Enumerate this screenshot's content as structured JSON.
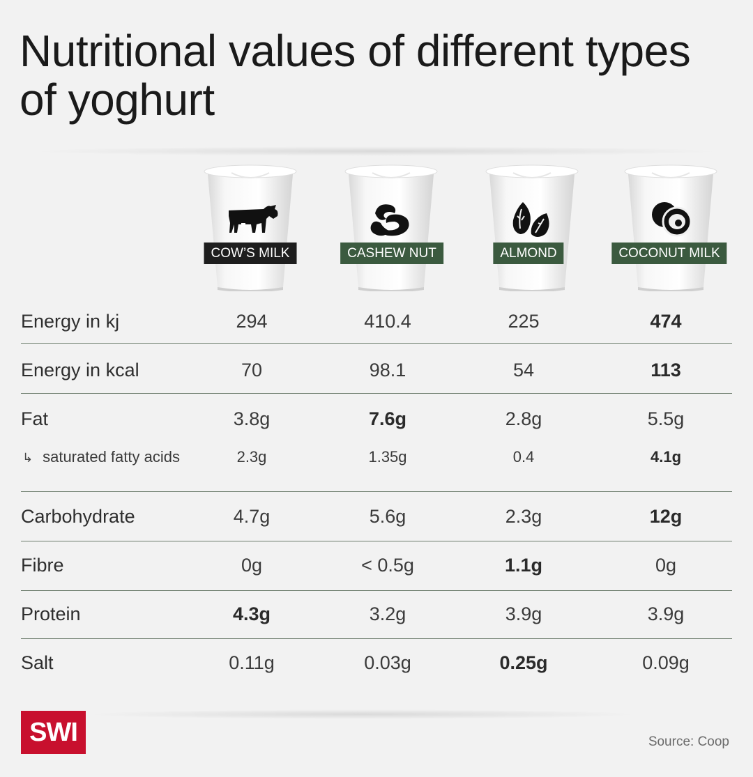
{
  "title": "Nutritional values of different types of yoghurt",
  "brand": "SWI",
  "source": "Source: Coop",
  "colors": {
    "dark_tag": "#1e1e1e",
    "green_tag": "#3b5a3f",
    "logo": "#c8102e"
  },
  "chart_data": {
    "type": "table",
    "columns": [
      {
        "name": "COW’S MILK",
        "icon": "cow-icon"
      },
      {
        "name": "CASHEW NUT",
        "icon": "cashew-icon"
      },
      {
        "name": "ALMOND",
        "icon": "almond-icon"
      },
      {
        "name": "COCONUT MILK",
        "icon": "coconut-icon"
      }
    ],
    "rows": [
      {
        "label": "Energy in kj",
        "values": [
          "294",
          "410.4",
          "225",
          "474"
        ],
        "highlight": 3
      },
      {
        "label": "Energy in kcal",
        "values": [
          "70",
          "98.1",
          "54",
          "113"
        ],
        "highlight": 3
      },
      {
        "label": "Fat",
        "values": [
          "3.8g",
          "7.6g",
          "2.8g",
          "5.5g"
        ],
        "highlight": 1
      },
      {
        "label": "saturated fatty acids",
        "values": [
          "2.3g",
          "1.35g",
          "0.4",
          "4.1g"
        ],
        "highlight": 3,
        "sub": true
      },
      {
        "label": "Carbohydrate",
        "values": [
          "4.7g",
          "5.6g",
          "2.3g",
          "12g"
        ],
        "highlight": 3
      },
      {
        "label": "Fibre",
        "values": [
          "0g",
          "< 0.5g",
          "1.1g",
          "0g"
        ],
        "highlight": 2
      },
      {
        "label": "Protein",
        "values": [
          "4.3g",
          "3.2g",
          "3.9g",
          "3.9g"
        ],
        "highlight": 0
      },
      {
        "label": "Salt",
        "values": [
          "0.11g",
          "0.03g",
          "0.25g",
          "0.09g"
        ],
        "highlight": 2
      }
    ]
  }
}
